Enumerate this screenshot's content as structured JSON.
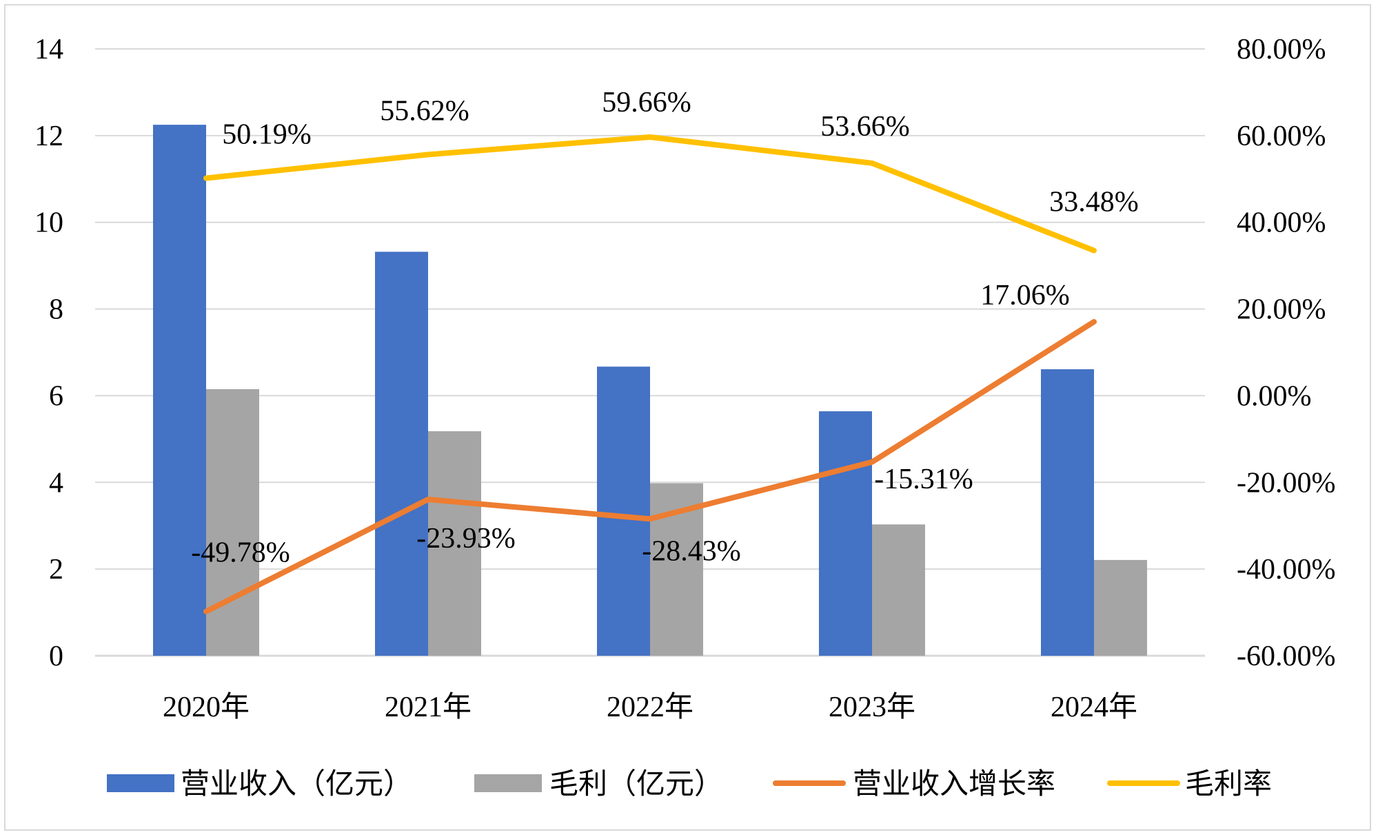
{
  "chart_data": {
    "type": "bar+line",
    "title": "",
    "categories": [
      "2020年",
      "2021年",
      "2022年",
      "2023年",
      "2024年"
    ],
    "left_axis": {
      "min": 0,
      "max": 14,
      "step": 2,
      "ticks": [
        "0",
        "2",
        "4",
        "6",
        "8",
        "10",
        "12",
        "14"
      ]
    },
    "right_axis": {
      "min": -60,
      "max": 80,
      "step": 20,
      "ticks": [
        "-60.00%",
        "-40.00%",
        "-20.00%",
        "0.00%",
        "20.00%",
        "40.00%",
        "60.00%",
        "80.00%"
      ]
    },
    "grid": true,
    "legend_position": "bottom",
    "series": [
      {
        "name": "营业收入（亿元）",
        "type": "bar",
        "axis": "left",
        "color": "#4472C4",
        "values": [
          12.25,
          9.32,
          6.67,
          5.64,
          6.61
        ]
      },
      {
        "name": "毛利（亿元）",
        "type": "bar",
        "axis": "left",
        "color": "#A5A5A5",
        "values": [
          6.15,
          5.18,
          3.98,
          3.03,
          2.21
        ]
      },
      {
        "name": "营业收入增长率",
        "type": "line",
        "axis": "right",
        "color": "#ED7D31",
        "values": [
          -49.78,
          -23.93,
          -28.43,
          -15.31,
          17.06
        ],
        "labels": [
          "-49.78%",
          "-23.93%",
          "-28.43%",
          "-15.31%",
          "17.06%"
        ]
      },
      {
        "name": "毛利率",
        "type": "line",
        "axis": "right",
        "color": "#FFC000",
        "values": [
          50.19,
          55.62,
          59.66,
          53.66,
          33.48
        ],
        "labels": [
          "50.19%",
          "55.62%",
          "59.66%",
          "53.66%",
          "33.48%"
        ]
      }
    ]
  }
}
